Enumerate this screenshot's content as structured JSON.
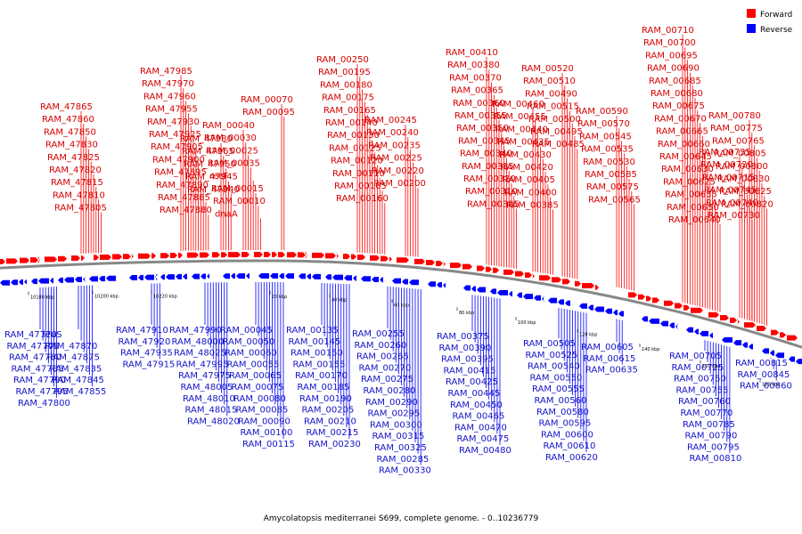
{
  "legend": {
    "items": [
      {
        "label": "Forward",
        "color": "#ff0000"
      },
      {
        "label": "Reverse",
        "color": "#0000ff"
      }
    ]
  },
  "caption": "Amycolatopsis mediterranei S699, complete genome. - 0..10236779",
  "colors": {
    "forward": "#ff0000",
    "reverse": "#0000ff",
    "forward_label": "#d70000",
    "reverse_label": "#1414c8",
    "backbone": "#555555"
  },
  "ticks": [
    "10180 kbp",
    "10200 kbp",
    "10220 kbp",
    "20 kbp",
    "40 kbp",
    "60 kbp",
    "80 kbp",
    "100 kbp",
    "120 kbp",
    "140 kbp",
    "160 kbp",
    "180 kbp"
  ],
  "forward_labels": [
    "RAM_47865",
    "RAM_47860",
    "RAM_47850",
    "RAM_47830",
    "RAM_47825",
    "RAM_47820",
    "RAM_47815",
    "RAM_47810",
    "RAM_47805",
    "RAM_47985",
    "RAM_47970",
    "RAM_47960",
    "RAM_47955",
    "RAM_47930",
    "RAM_47925",
    "RAM_47905",
    "RAM_47900",
    "RAM_47895",
    "RAM_47890",
    "RAM_47885",
    "RAM_47880",
    "RAM_47980",
    "RAM_47965",
    "RAM_47950",
    "RAM_47945",
    "RAM_47940",
    "RAM_00040",
    "RAM_00030",
    "RAM_00025",
    "RAM_00035",
    "recF",
    "RAM_00015",
    "RAM_00010",
    "dnaA",
    "RAM_00070",
    "RAM_00095",
    "RAM_00250",
    "RAM_00195",
    "RAM_00180",
    "RAM_00175",
    "RAM_00165",
    "RAM_00140",
    "RAM_00130",
    "RAM_00125",
    "RAM_00120",
    "RAM_00110",
    "RAM_00105",
    "RAM_00160",
    "RAM_00245",
    "RAM_00240",
    "RAM_00235",
    "RAM_00225",
    "RAM_00220",
    "RAM_00200",
    "RAM_00410",
    "RAM_00380",
    "RAM_00370",
    "RAM_00365",
    "RAM_00360",
    "RAM_00355",
    "RAM_00350",
    "RAM_00345",
    "RAM_00340",
    "RAM_00335",
    "RAM_00320",
    "RAM_00310",
    "RAM_00305",
    "RAM_00460",
    "RAM_00455",
    "RAM_00440",
    "RAM_00435",
    "RAM_00430",
    "RAM_00420",
    "RAM_00405",
    "RAM_00400",
    "RAM_00385",
    "RAM_00520",
    "RAM_00510",
    "RAM_00490",
    "RAM_00515",
    "RAM_00500",
    "RAM_00495",
    "RAM_00485",
    "RAM_00590",
    "RAM_00570",
    "RAM_00545",
    "RAM_00535",
    "RAM_00530",
    "RAM_00585",
    "RAM_00575",
    "RAM_00565",
    "RAM_00710",
    "RAM_00700",
    "RAM_00695",
    "RAM_00690",
    "RAM_00685",
    "RAM_00680",
    "RAM_00675",
    "RAM_00670",
    "RAM_00665",
    "RAM_00660",
    "RAM_00645",
    "RAM_00630",
    "RAM_00625",
    "RAM_00655",
    "RAM_00650",
    "RAM_00640",
    "RAM_00735",
    "RAM_00720",
    "RAM_00715",
    "RAM_00745",
    "RAM_00740",
    "RAM_00730",
    "RAM_00780",
    "RAM_00775",
    "RAM_00765",
    "RAM_00805",
    "RAM_00800",
    "RAM_00830",
    "RAM_00825",
    "RAM_00820"
  ],
  "reverse_labels": [
    "RAM_47770",
    "RAM_47775",
    "RAM_47780",
    "RAM_47785",
    "RAM_47790",
    "RAM_47795",
    "RAM_47800",
    "leuS",
    "RAM_47870",
    "RAM_47875",
    "RAM_47835",
    "RAM_47845",
    "RAM_47855",
    "RAM_47910",
    "RAM_47920",
    "RAM_47935",
    "RAM_47915",
    "RAM_47990",
    "RAM_48000",
    "RAM_48025",
    "RAM_47995",
    "RAM_47975",
    "RAM_48005",
    "RAM_48010",
    "RAM_48015",
    "RAM_48020",
    "RAM_00045",
    "RAM_00050",
    "RAM_00060",
    "RAM_00055",
    "RAM_00065",
    "RAM_00075",
    "RAM_00080",
    "RAM_00085",
    "RAM_00090",
    "RAM_00100",
    "RAM_00115",
    "RAM_00135",
    "RAM_00145",
    "RAM_00150",
    "RAM_00155",
    "RAM_00170",
    "RAM_00185",
    "RAM_00190",
    "RAM_00205",
    "RAM_00210",
    "RAM_00215",
    "RAM_00230",
    "RAM_00255",
    "RAM_00260",
    "RAM_00265",
    "RAM_00270",
    "RAM_00275",
    "RAM_00280",
    "RAM_00290",
    "RAM_00295",
    "RAM_00300",
    "RAM_00315",
    "RAM_00325",
    "RAM_00285",
    "RAM_00330",
    "RAM_00375",
    "RAM_00390",
    "RAM_00395",
    "RAM_00415",
    "RAM_00425",
    "RAM_00445",
    "RAM_00450",
    "RAM_00465",
    "RAM_00470",
    "RAM_00475",
    "RAM_00480",
    "RAM_00505",
    "RAM_00525",
    "RAM_00540",
    "RAM_00550",
    "RAM_00555",
    "RAM_00560",
    "RAM_00580",
    "RAM_00595",
    "RAM_00600",
    "RAM_00610",
    "RAM_00620",
    "RAM_00605",
    "RAM_00615",
    "RAM_00635",
    "RAM_00705",
    "RAM_00725",
    "RAM_00750",
    "RAM_00755",
    "RAM_00760",
    "RAM_00770",
    "RAM_00785",
    "RAM_00790",
    "RAM_00795",
    "RAM_00810",
    "RAM_00815",
    "RAM_00845",
    "RAM_00860"
  ]
}
